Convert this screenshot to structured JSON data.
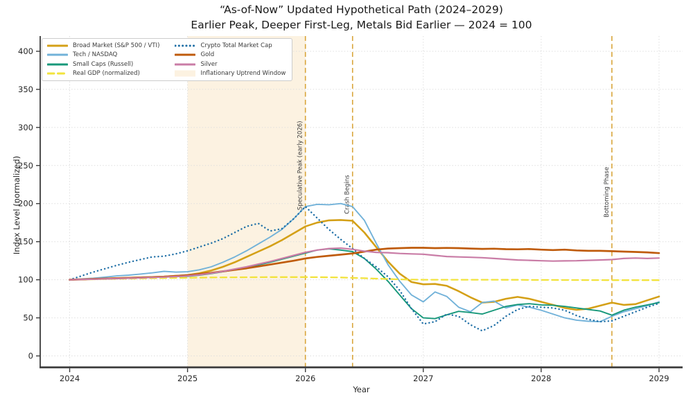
{
  "figure": {
    "background": "#ffffff"
  },
  "chart_data": {
    "type": "line",
    "title": "“As-of-Now” Updated Hypothetical Path (2024–2029)",
    "subtitle": "Earlier Peak, Deeper First-Leg, Metals Bid Earlier — 2024 = 100",
    "xlabel": "Year",
    "ylabel": "Index Level (normalized)",
    "xlim": [
      2023.75,
      2029.2
    ],
    "ylim": [
      -15,
      420
    ],
    "x_ticks": [
      2024,
      2025,
      2026,
      2027,
      2028,
      2029
    ],
    "y_ticks": [
      0,
      50,
      100,
      150,
      200,
      250,
      300,
      350,
      400
    ],
    "grid": true,
    "legend_position": "upper left",
    "x_start": 2024,
    "x_step": 0.1,
    "grid_color": "#dedede",
    "spine_color": "#3a3a3a",
    "tick_label_color": "#262626",
    "vline_color": "#d9a53a",
    "annotation_color": "#3d3d3d",
    "series": [
      {
        "key": "broad-market",
        "name": "Broad Market (S&P 500 / VTI)",
        "color": "#d4a017",
        "style": "solid",
        "width": 2.6,
        "values": [
          100,
          100.5,
          101,
          101.5,
          102,
          102.5,
          103,
          103.5,
          104,
          105,
          106,
          108.5,
          112,
          117,
          123,
          130,
          137,
          144,
          152,
          161,
          170,
          175,
          178,
          178.5,
          177.5,
          162,
          143,
          124,
          108,
          97,
          94,
          94.5,
          92,
          85,
          77,
          70,
          71,
          75,
          77.5,
          75,
          71,
          67,
          63,
          60.5,
          62,
          66,
          70,
          67,
          68,
          73,
          78
        ]
      },
      {
        "key": "tech-nasdaq",
        "name": "Tech / NASDAQ",
        "color": "#72b2d9",
        "style": "solid",
        "width": 1.9,
        "values": [
          100,
          101,
          102,
          103.5,
          105,
          106,
          107.5,
          109,
          111,
          110,
          110.5,
          113,
          117,
          123,
          130,
          138,
          147,
          156,
          166,
          180,
          196,
          199,
          198.5,
          200,
          196,
          178,
          148,
          120,
          98,
          80,
          71,
          84,
          78,
          64,
          58,
          70,
          72,
          63,
          67,
          64,
          60,
          55,
          50,
          47,
          45.5,
          45,
          52,
          58,
          62,
          66,
          71
        ]
      },
      {
        "key": "small-caps",
        "name": "Small Caps (Russell)",
        "color": "#17987a",
        "style": "solid",
        "width": 1.9,
        "values": [
          100,
          100.5,
          101,
          101.5,
          102,
          102,
          102.5,
          103,
          103.5,
          104,
          104.5,
          106,
          108,
          110.5,
          113,
          116,
          119.5,
          123,
          127,
          131,
          135,
          139,
          140.5,
          139,
          137,
          128,
          114,
          98,
          80,
          62,
          50,
          49,
          54,
          58.5,
          57,
          55,
          60,
          65,
          67.5,
          68.5,
          67,
          66.5,
          65,
          63,
          61,
          59,
          53.5,
          60,
          64,
          67,
          70
        ]
      },
      {
        "key": "real-gdp",
        "name": "Real GDP (normalized)",
        "color": "#f2e33c",
        "style": "dashed",
        "width": 2.3,
        "values": [
          100,
          100.3,
          100.6,
          100.9,
          101.2,
          101.5,
          101.8,
          102,
          102.2,
          102.4,
          102.6,
          102.8,
          103,
          103.1,
          103.2,
          103.3,
          103.4,
          103.5,
          103.5,
          103.5,
          103.5,
          103.4,
          103.2,
          103,
          102.5,
          102,
          101.5,
          101,
          100.5,
          100.2,
          100,
          100,
          100,
          100,
          100,
          100,
          100,
          99.9,
          99.9,
          99.8,
          99.8,
          99.8,
          99.7,
          99.7,
          99.6,
          99.6,
          99.5,
          99.5,
          99.5,
          99.5,
          99.5
        ]
      },
      {
        "key": "crypto-total-market-cap",
        "name": "Crypto Total Market Cap",
        "color": "#1f6fa6",
        "style": "dotted",
        "width": 2.4,
        "values": [
          100,
          105,
          110,
          114.5,
          119,
          123,
          126.5,
          130,
          131,
          134,
          138,
          143,
          148,
          154,
          162,
          170,
          174,
          164,
          167,
          180,
          196,
          181,
          166,
          153,
          141,
          128,
          117,
          104,
          86,
          62,
          42,
          45,
          55,
          52,
          41,
          33,
          40,
          52,
          61,
          65,
          64,
          63,
          60,
          53,
          48,
          45,
          46,
          52,
          58,
          64,
          69
        ]
      },
      {
        "key": "gold",
        "name": "Gold",
        "color": "#bf5b0b",
        "style": "solid",
        "width": 2.7,
        "values": [
          100,
          100.5,
          101,
          101.5,
          102,
          102.5,
          103,
          103.5,
          104,
          105,
          106,
          107.5,
          109,
          111,
          113,
          115,
          117.5,
          120,
          122.5,
          125,
          128,
          130,
          131.5,
          133,
          134.5,
          137,
          139.5,
          141,
          141.5,
          142,
          142,
          141.5,
          141.8,
          141.5,
          141,
          140.5,
          140.8,
          140.2,
          140,
          140.3,
          139.5,
          139,
          139.5,
          138.5,
          138,
          138,
          137.5,
          137,
          136.5,
          136,
          135
        ]
      },
      {
        "key": "silver",
        "name": "Silver",
        "color": "#c97ca6",
        "style": "solid",
        "width": 2.2,
        "values": [
          100,
          100.4,
          100.8,
          101.2,
          101.6,
          102,
          102.5,
          103,
          103.5,
          104.2,
          105,
          106.5,
          108.5,
          111,
          114,
          117,
          120.5,
          124,
          128,
          132,
          136,
          139,
          141,
          141.5,
          140,
          137.5,
          136,
          135.5,
          134.5,
          134,
          133.5,
          132,
          130.5,
          130,
          129.5,
          129,
          128,
          127,
          126,
          125.5,
          125,
          124.5,
          124.8,
          125,
          125.5,
          126,
          126.5,
          128,
          128.5,
          128,
          128.5
        ]
      }
    ],
    "span": {
      "key": "inflationary-uptrend-window",
      "label": "Inflationary Uptrend Window",
      "x0": 2025,
      "x1": 2026,
      "color": "#fcf2e1"
    },
    "vlines": [
      {
        "key": "speculative-peak",
        "x": 2026,
        "label": "Speculative Peak (early 2026)",
        "label_y": 250
      },
      {
        "key": "crash-begins",
        "x": 2026.4,
        "label": "Crash Begins",
        "label_y": 212
      },
      {
        "key": "bottoming-phase",
        "x": 2028.6,
        "label": "Bottoming Phase",
        "label_y": 215
      }
    ]
  }
}
